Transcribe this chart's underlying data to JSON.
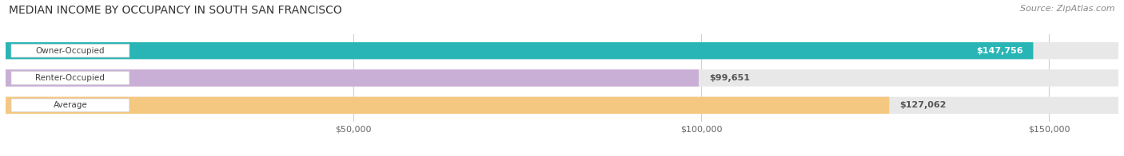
{
  "title": "MEDIAN INCOME BY OCCUPANCY IN SOUTH SAN FRANCISCO",
  "source": "Source: ZipAtlas.com",
  "categories": [
    "Owner-Occupied",
    "Renter-Occupied",
    "Average"
  ],
  "values": [
    147756,
    99651,
    127062
  ],
  "labels": [
    "$147,756",
    "$99,651",
    "$127,062"
  ],
  "bar_colors": [
    "#29b5b5",
    "#c9aed6",
    "#f5c882"
  ],
  "bar_bg_color": "#e8e8e8",
  "xlim": [
    0,
    160000
  ],
  "xticks": [
    50000,
    100000,
    150000
  ],
  "xticklabels": [
    "$50,000",
    "$100,000",
    "$150,000"
  ],
  "title_fontsize": 10,
  "source_fontsize": 8,
  "bar_height": 0.62,
  "background_color": "#ffffff",
  "grid_color": "#d0d0d0",
  "label_white_threshold": 0.88
}
